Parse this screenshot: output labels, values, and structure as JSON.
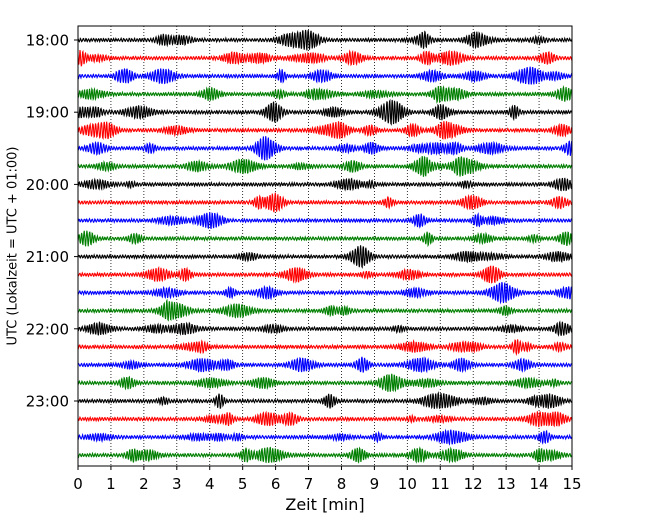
{
  "chart_data": {
    "type": "line",
    "subtype": "helicorder (seismogram drum plot)",
    "title": "",
    "xlabel": "Zeit  [min]",
    "ylabel": "UTC (Lokalzeit = UTC + 01:00)",
    "xlim": [
      0,
      15
    ],
    "x_ticks": [
      "0",
      "1",
      "2",
      "3",
      "4",
      "5",
      "6",
      "7",
      "8",
      "9",
      "10",
      "11",
      "12",
      "13",
      "14",
      "15"
    ],
    "y_ticks": [
      "18:00",
      "19:00",
      "20:00",
      "21:00",
      "22:00",
      "23:00"
    ],
    "vertical_grid": "dotted at each minute",
    "trace_interval_minutes": 15,
    "trace_colors": [
      "#000000",
      "#ff0000",
      "#0000ff",
      "#007f00"
    ],
    "traces": [
      {
        "start": "18:00",
        "color": "#000000"
      },
      {
        "start": "18:15",
        "color": "#ff0000"
      },
      {
        "start": "18:30",
        "color": "#0000ff"
      },
      {
        "start": "18:45",
        "color": "#007f00"
      },
      {
        "start": "19:00",
        "color": "#000000"
      },
      {
        "start": "19:15",
        "color": "#ff0000"
      },
      {
        "start": "19:30",
        "color": "#0000ff"
      },
      {
        "start": "19:45",
        "color": "#007f00"
      },
      {
        "start": "20:00",
        "color": "#000000"
      },
      {
        "start": "20:15",
        "color": "#ff0000"
      },
      {
        "start": "20:30",
        "color": "#0000ff"
      },
      {
        "start": "20:45",
        "color": "#007f00"
      },
      {
        "start": "21:00",
        "color": "#000000"
      },
      {
        "start": "21:15",
        "color": "#ff0000"
      },
      {
        "start": "21:30",
        "color": "#0000ff"
      },
      {
        "start": "21:45",
        "color": "#007f00"
      },
      {
        "start": "22:00",
        "color": "#000000"
      },
      {
        "start": "22:15",
        "color": "#ff0000"
      },
      {
        "start": "22:30",
        "color": "#0000ff"
      },
      {
        "start": "22:45",
        "color": "#007f00"
      },
      {
        "start": "23:00",
        "color": "#000000"
      },
      {
        "start": "23:15",
        "color": "#ff0000"
      },
      {
        "start": "23:30",
        "color": "#0000ff"
      },
      {
        "start": "23:45",
        "color": "#007f00"
      }
    ]
  }
}
